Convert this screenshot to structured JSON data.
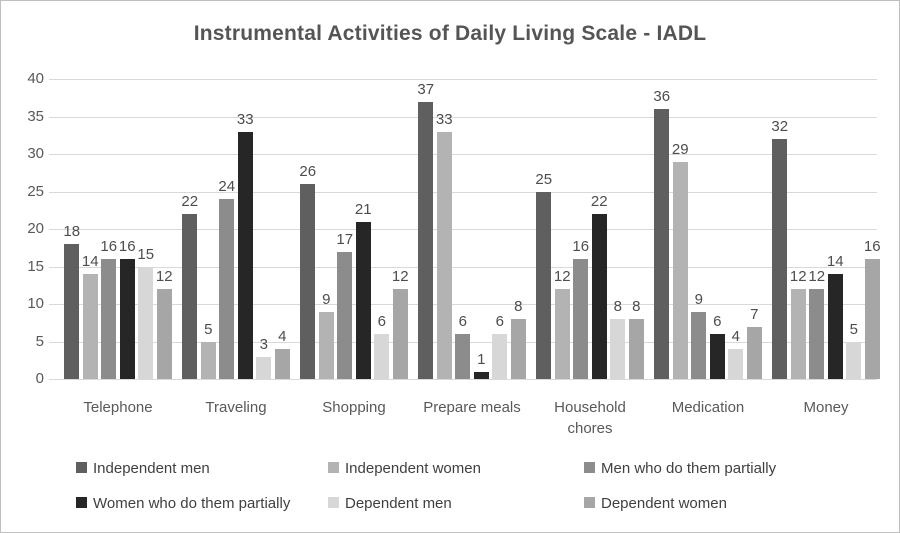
{
  "chart_data": {
    "type": "bar",
    "title": "Instrumental Activities of Daily Living Scale - IADL",
    "categories": [
      "Telephone",
      "Traveling",
      "Shopping",
      "Prepare meals",
      "Household chores",
      "Medication",
      "Money"
    ],
    "series": [
      {
        "name": "Independent men",
        "color": "#5f5f5f",
        "values": [
          18,
          22,
          26,
          37,
          25,
          36,
          32
        ]
      },
      {
        "name": "Independent women",
        "color": "#b3b3b3",
        "values": [
          14,
          5,
          9,
          33,
          12,
          29,
          12
        ]
      },
      {
        "name": "Men who do them partially",
        "color": "#8c8c8c",
        "values": [
          16,
          24,
          17,
          6,
          16,
          9,
          12
        ]
      },
      {
        "name": "Women who do them partially",
        "color": "#262626",
        "values": [
          16,
          33,
          21,
          1,
          22,
          6,
          14
        ]
      },
      {
        "name": "Dependent men",
        "color": "#d7d7d7",
        "values": [
          15,
          3,
          6,
          6,
          8,
          4,
          5
        ]
      },
      {
        "name": "Dependent women",
        "color": "#a6a6a6",
        "values": [
          12,
          4,
          12,
          8,
          8,
          7,
          16
        ]
      }
    ],
    "ylim": [
      0,
      40
    ],
    "yticks": [
      0,
      5,
      10,
      15,
      20,
      25,
      30,
      35,
      40
    ],
    "grid": true,
    "data_labels": true,
    "legend_position": "bottom"
  },
  "colors": {
    "grid": "#d9d9d9",
    "axis_text": "#595959",
    "data_label": "#4d4d4d",
    "title_text": "#555555",
    "legend_text": "#404040",
    "border": "#bfbfbf",
    "background": "#ffffff"
  }
}
